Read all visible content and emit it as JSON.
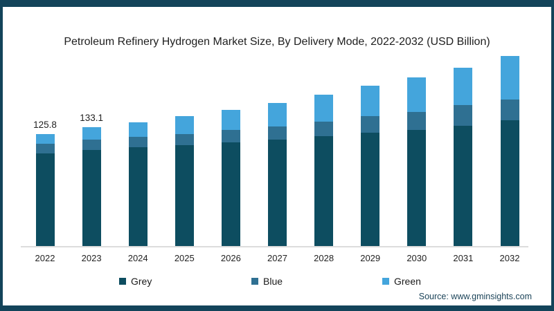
{
  "frame_color": "#13445a",
  "source_text": "Source: www.gminsights.com",
  "chart_data": {
    "type": "bar",
    "stacked": true,
    "title": "Petroleum Refinery Hydrogen Market Size, By Delivery Mode, 2022-2032 (USD Billion)",
    "xlabel": "",
    "ylabel": "USD Billion",
    "ylim": [
      0,
      220
    ],
    "grid": false,
    "legend_position": "bottom",
    "axis_line_color": "#dcdcdc",
    "categories": [
      "2022",
      "2023",
      "2024",
      "2025",
      "2026",
      "2027",
      "2028",
      "2029",
      "2030",
      "2031",
      "2032"
    ],
    "series": [
      {
        "name": "Grey",
        "color": "#0d4d60",
        "values": [
          104.0,
          108.0,
          110.6,
          113.3,
          116.5,
          119.2,
          123.5,
          127.0,
          130.1,
          135.2,
          141.0
        ]
      },
      {
        "name": "Blue",
        "color": "#2f7092",
        "values": [
          10.9,
          11.6,
          12.1,
          12.5,
          14.0,
          14.8,
          16.1,
          18.7,
          20.2,
          22.6,
          23.3
        ]
      },
      {
        "name": "Green",
        "color": "#44a5dc",
        "values": [
          10.9,
          13.5,
          16.3,
          20.2,
          22.1,
          26.7,
          30.1,
          34.2,
          39.1,
          42.3,
          49.0
        ]
      }
    ],
    "totals": [
      125.8,
      133.1,
      139.0,
      146.0,
      152.6,
      160.7,
      169.7,
      179.9,
      189.4,
      200.1,
      213.3
    ],
    "data_labels": [
      "125.8",
      "133.1",
      "",
      "",
      "",
      "",
      "",
      "",
      "",
      "",
      ""
    ]
  }
}
